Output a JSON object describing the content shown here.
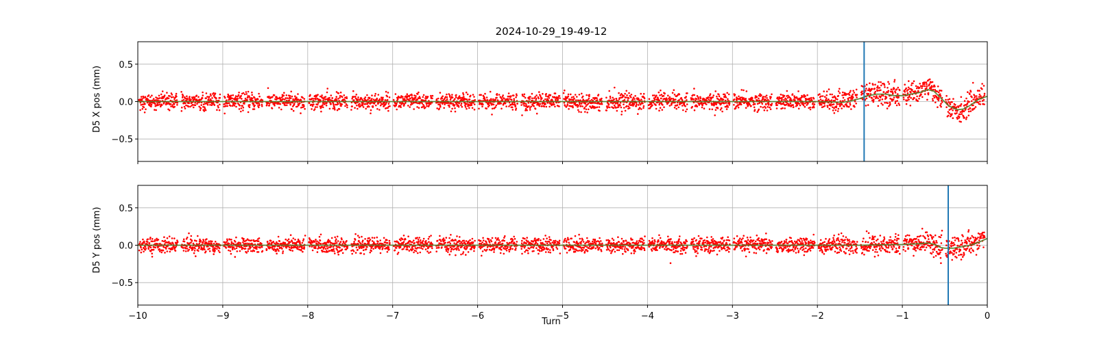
{
  "chart_data": {
    "type": "scatter",
    "title": "2024-10-29_19-49-12",
    "xlabel": "Turn",
    "xlim": [
      -10,
      0
    ],
    "ylim": [
      -0.8,
      0.8
    ],
    "grid": true,
    "x_ticks": [
      -10,
      -9,
      -8,
      -7,
      -6,
      -5,
      -4,
      -3,
      -2,
      -1,
      0
    ],
    "x_tick_labels": [
      "−10",
      "−9",
      "−8",
      "−7",
      "−6",
      "−5",
      "−4",
      "−3",
      "−2",
      "−1",
      "0"
    ],
    "y_ticks": [
      -0.5,
      0.0,
      0.5
    ],
    "y_tick_labels": [
      "−0.5",
      "0.0",
      "0.5"
    ],
    "colors": {
      "points": "#ff0000",
      "smooth": "#4f7d2a",
      "marker_line": "#1f77b4",
      "grid": "#b0b0b0"
    },
    "panels": [
      {
        "ylabel": "D5 X pos (mm)",
        "marker_line_x": -1.45,
        "scatter_noise_sigma": 0.055,
        "scatter_mean": [
          [
            -10.0,
            0.0
          ],
          [
            -2.0,
            0.0
          ],
          [
            -1.7,
            0.0
          ],
          [
            -1.6,
            0.04
          ],
          [
            -1.5,
            0.08
          ],
          [
            -1.4,
            0.09
          ],
          [
            -1.3,
            0.11
          ],
          [
            -1.2,
            0.1
          ],
          [
            -1.1,
            0.08
          ],
          [
            -1.0,
            0.09
          ],
          [
            -0.9,
            0.11
          ],
          [
            -0.8,
            0.14
          ],
          [
            -0.7,
            0.2
          ],
          [
            -0.62,
            0.15
          ],
          [
            -0.55,
            0.02
          ],
          [
            -0.45,
            -0.08
          ],
          [
            -0.35,
            -0.14
          ],
          [
            -0.28,
            -0.1
          ],
          [
            -0.2,
            -0.02
          ],
          [
            -0.1,
            0.06
          ],
          [
            0.0,
            0.1
          ]
        ],
        "smooth_line": [
          [
            -10.0,
            0.0
          ],
          [
            -2.0,
            0.0
          ],
          [
            -1.7,
            -0.01
          ],
          [
            -1.6,
            0.01
          ],
          [
            -1.5,
            0.04
          ],
          [
            -1.4,
            0.08
          ],
          [
            -1.3,
            0.1
          ],
          [
            -1.2,
            0.1
          ],
          [
            -1.1,
            0.08
          ],
          [
            -1.0,
            0.08
          ],
          [
            -0.9,
            0.1
          ],
          [
            -0.8,
            0.12
          ],
          [
            -0.7,
            0.16
          ],
          [
            -0.63,
            0.14
          ],
          [
            -0.55,
            0.05
          ],
          [
            -0.45,
            -0.06
          ],
          [
            -0.35,
            -0.11
          ],
          [
            -0.28,
            -0.1
          ],
          [
            -0.2,
            -0.05
          ],
          [
            -0.1,
            0.03
          ],
          [
            0.0,
            0.07
          ]
        ]
      },
      {
        "ylabel": "D5 Y pos (mm)",
        "marker_line_x": -0.46,
        "scatter_noise_sigma": 0.05,
        "scatter_mean": [
          [
            -10.0,
            0.0
          ],
          [
            -1.5,
            0.0
          ],
          [
            -1.0,
            0.01
          ],
          [
            -0.8,
            0.03
          ],
          [
            -0.7,
            0.05
          ],
          [
            -0.62,
            0.0
          ],
          [
            -0.55,
            -0.06
          ],
          [
            -0.5,
            -0.07
          ],
          [
            -0.4,
            -0.04
          ],
          [
            -0.3,
            -0.02
          ],
          [
            -0.2,
            0.02
          ],
          [
            -0.1,
            0.08
          ],
          [
            0.0,
            0.14
          ]
        ],
        "smooth_line": [
          [
            -10.0,
            0.0
          ],
          [
            -1.5,
            0.0
          ],
          [
            -1.0,
            0.01
          ],
          [
            -0.8,
            0.02
          ],
          [
            -0.7,
            0.03
          ],
          [
            -0.62,
            0.01
          ],
          [
            -0.55,
            -0.03
          ],
          [
            -0.5,
            -0.04
          ],
          [
            -0.4,
            -0.04
          ],
          [
            -0.3,
            -0.02
          ],
          [
            -0.2,
            0.0
          ],
          [
            -0.1,
            0.04
          ],
          [
            0.0,
            0.09
          ]
        ]
      }
    ]
  }
}
